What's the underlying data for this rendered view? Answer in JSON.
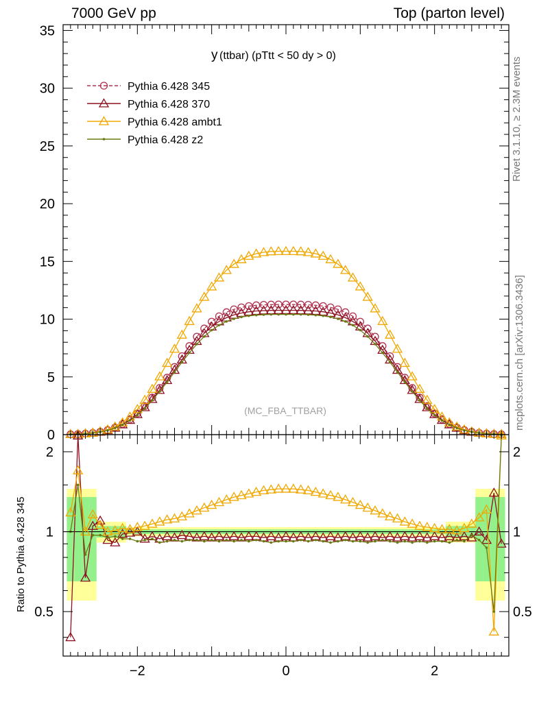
{
  "header": {
    "left": "7000 GeV pp",
    "right": "Top (parton level)"
  },
  "side_labels": {
    "rivet": "Rivet 3.1.10, ≥ 2.3M events",
    "mcplots": "mcplots.cern.ch [arXiv:1306.3436]"
  },
  "chart_data": [
    {
      "type": "line",
      "title_main": "y",
      "title_rest": "(ttbar) (pTtt < 50 dy > 0)",
      "watermark": "(MC_FBA_TTBAR)",
      "xlim": [
        -3.0,
        3.0
      ],
      "ylim": [
        0,
        35.5
      ],
      "yticks": [
        0,
        5,
        10,
        15,
        20,
        25,
        30,
        35
      ],
      "yticklabels": [
        "0",
        "5",
        "10",
        "15",
        "20",
        "25",
        "30",
        "35"
      ],
      "legend_position": "top-left",
      "series": [
        {
          "name": "Pythia 6.428 345",
          "color": "#b03050",
          "dashed": true,
          "marker": "circle",
          "x": [
            -2.9,
            -2.8,
            -2.7,
            -2.6,
            -2.5,
            -2.4,
            -2.3,
            -2.2,
            -2.1,
            -2.0,
            -1.9,
            -1.8,
            -1.7,
            -1.6,
            -1.5,
            -1.4,
            -1.3,
            -1.2,
            -1.1,
            -1.0,
            -0.9,
            -0.8,
            -0.7,
            -0.6,
            -0.5,
            -0.4,
            -0.3,
            -0.2,
            -0.1,
            0.0,
            0.1,
            0.2,
            0.3,
            0.4,
            0.5,
            0.6,
            0.7,
            0.8,
            0.9,
            1.0,
            1.1,
            1.2,
            1.3,
            1.4,
            1.5,
            1.6,
            1.7,
            1.8,
            1.9,
            2.0,
            2.1,
            2.2,
            2.3,
            2.4,
            2.5,
            2.6,
            2.7,
            2.8,
            2.9
          ],
          "y": [
            0.03,
            0.05,
            0.09,
            0.15,
            0.25,
            0.4,
            0.62,
            0.92,
            1.32,
            1.84,
            2.47,
            3.21,
            4.04,
            4.93,
            5.86,
            6.79,
            7.67,
            8.48,
            9.19,
            9.78,
            10.25,
            10.6,
            10.85,
            11.02,
            11.13,
            11.2,
            11.24,
            11.26,
            11.27,
            11.27,
            11.27,
            11.26,
            11.24,
            11.2,
            11.13,
            11.02,
            10.85,
            10.6,
            10.25,
            9.78,
            9.19,
            8.48,
            7.67,
            6.79,
            5.86,
            4.93,
            4.04,
            3.21,
            2.47,
            1.84,
            1.32,
            0.92,
            0.62,
            0.4,
            0.25,
            0.15,
            0.09,
            0.05,
            0.03
          ]
        },
        {
          "name": "Pythia 6.428 370",
          "color": "#8b1020",
          "dashed": false,
          "marker": "triangle",
          "x": [
            -2.9,
            -2.8,
            -2.7,
            -2.6,
            -2.5,
            -2.4,
            -2.3,
            -2.2,
            -2.1,
            -2.0,
            -1.9,
            -1.8,
            -1.7,
            -1.6,
            -1.5,
            -1.4,
            -1.3,
            -1.2,
            -1.1,
            -1.0,
            -0.9,
            -0.8,
            -0.7,
            -0.6,
            -0.5,
            -0.4,
            -0.3,
            -0.2,
            -0.1,
            0.0,
            0.1,
            0.2,
            0.3,
            0.4,
            0.5,
            0.6,
            0.7,
            0.8,
            0.9,
            1.0,
            1.1,
            1.2,
            1.3,
            1.4,
            1.5,
            1.6,
            1.7,
            1.8,
            1.9,
            2.0,
            2.1,
            2.2,
            2.3,
            2.4,
            2.5,
            2.6,
            2.7,
            2.8,
            2.9
          ],
          "y": [
            0.03,
            0.05,
            0.09,
            0.15,
            0.24,
            0.38,
            0.59,
            0.88,
            1.26,
            1.76,
            2.36,
            3.07,
            3.86,
            4.71,
            5.6,
            6.49,
            7.33,
            8.1,
            8.78,
            9.35,
            9.8,
            10.13,
            10.37,
            10.53,
            10.64,
            10.71,
            10.74,
            10.76,
            10.77,
            10.77,
            10.77,
            10.76,
            10.74,
            10.71,
            10.64,
            10.53,
            10.37,
            10.13,
            9.8,
            9.35,
            8.78,
            8.1,
            7.33,
            6.49,
            5.6,
            4.71,
            3.86,
            3.07,
            2.36,
            1.76,
            1.26,
            0.88,
            0.59,
            0.38,
            0.24,
            0.15,
            0.09,
            0.05,
            0.03
          ]
        },
        {
          "name": "Pythia 6.428 ambt1",
          "color": "#f0a800",
          "dashed": false,
          "marker": "triangle",
          "x": [
            -2.9,
            -2.8,
            -2.7,
            -2.6,
            -2.5,
            -2.4,
            -2.3,
            -2.2,
            -2.1,
            -2.0,
            -1.9,
            -1.8,
            -1.7,
            -1.6,
            -1.5,
            -1.4,
            -1.3,
            -1.2,
            -1.1,
            -1.0,
            -0.9,
            -0.8,
            -0.7,
            -0.6,
            -0.5,
            -0.4,
            -0.3,
            -0.2,
            -0.1,
            0.0,
            0.1,
            0.2,
            0.3,
            0.4,
            0.5,
            0.6,
            0.7,
            0.8,
            0.9,
            1.0,
            1.1,
            1.2,
            1.3,
            1.4,
            1.5,
            1.6,
            1.7,
            1.8,
            1.9,
            2.0,
            2.1,
            2.2,
            2.3,
            2.4,
            2.5,
            2.6,
            2.7,
            2.8,
            2.9
          ],
          "y": [
            0.03,
            0.05,
            0.09,
            0.16,
            0.27,
            0.44,
            0.69,
            1.04,
            1.55,
            2.2,
            3.0,
            3.95,
            5.03,
            6.2,
            7.42,
            8.64,
            9.82,
            10.92,
            11.92,
            12.82,
            13.59,
            14.24,
            14.77,
            15.17,
            15.47,
            15.67,
            15.79,
            15.86,
            15.88,
            15.88,
            15.88,
            15.86,
            15.79,
            15.67,
            15.47,
            15.17,
            14.77,
            14.24,
            13.59,
            12.82,
            11.92,
            10.92,
            9.82,
            8.64,
            7.42,
            6.2,
            5.03,
            3.95,
            3.0,
            2.2,
            1.55,
            1.04,
            0.69,
            0.44,
            0.27,
            0.16,
            0.09,
            0.05,
            0.03
          ]
        },
        {
          "name": "Pythia 6.428 z2",
          "color": "#6b7a10",
          "dashed": false,
          "marker": "dot",
          "x": [
            -2.9,
            -2.8,
            -2.7,
            -2.6,
            -2.5,
            -2.4,
            -2.3,
            -2.2,
            -2.1,
            -2.0,
            -1.9,
            -1.8,
            -1.7,
            -1.6,
            -1.5,
            -1.4,
            -1.3,
            -1.2,
            -1.1,
            -1.0,
            -0.9,
            -0.8,
            -0.7,
            -0.6,
            -0.5,
            -0.4,
            -0.3,
            -0.2,
            -0.1,
            0.0,
            0.1,
            0.2,
            0.3,
            0.4,
            0.5,
            0.6,
            0.7,
            0.8,
            0.9,
            1.0,
            1.1,
            1.2,
            1.3,
            1.4,
            1.5,
            1.6,
            1.7,
            1.8,
            1.9,
            2.0,
            2.1,
            2.2,
            2.3,
            2.4,
            2.5,
            2.6,
            2.7,
            2.8,
            2.9
          ],
          "y": [
            0.03,
            0.05,
            0.08,
            0.14,
            0.23,
            0.37,
            0.57,
            0.85,
            1.22,
            1.7,
            2.28,
            2.97,
            3.74,
            4.56,
            5.42,
            6.28,
            7.09,
            7.84,
            8.5,
            9.05,
            9.48,
            9.8,
            10.03,
            10.19,
            10.29,
            10.35,
            10.39,
            10.41,
            10.41,
            10.41,
            10.41,
            10.41,
            10.39,
            10.35,
            10.29,
            10.19,
            10.03,
            9.8,
            9.48,
            9.05,
            8.5,
            7.84,
            7.09,
            6.28,
            5.42,
            4.56,
            3.74,
            2.97,
            2.28,
            1.7,
            1.22,
            0.85,
            0.57,
            0.37,
            0.23,
            0.14,
            0.08,
            0.05,
            0.03
          ]
        }
      ]
    },
    {
      "type": "line",
      "ylabel": "Ratio to Pythia 6.428 345",
      "xlim": [
        -3.0,
        3.0
      ],
      "ylim": [
        0.34,
        2.32
      ],
      "log_y": true,
      "reference": 1.0,
      "xticks": [
        -2,
        0,
        2
      ],
      "xticklabels": [
        "−2",
        "0",
        "2"
      ],
      "yticks": [
        0.5,
        1,
        2
      ],
      "yticklabels": [
        "0.5",
        "1",
        "2"
      ],
      "series": [
        {
          "name": "Pythia 6.428 370",
          "color": "#8b1020",
          "marker": "triangle",
          "x": [
            -2.9,
            -2.8,
            -2.7,
            -2.6,
            -2.5,
            -2.4,
            -2.3,
            -2.2,
            -2.1,
            -2.0,
            -1.9,
            -1.8,
            -1.7,
            -1.6,
            -1.5,
            -1.4,
            -1.3,
            -1.2,
            -1.1,
            -1.0,
            -0.9,
            -0.8,
            -0.7,
            -0.6,
            -0.5,
            -0.4,
            -0.3,
            -0.2,
            -0.1,
            0.0,
            0.1,
            0.2,
            0.3,
            0.4,
            0.5,
            0.6,
            0.7,
            0.8,
            0.9,
            1.0,
            1.1,
            1.2,
            1.3,
            1.4,
            1.5,
            1.6,
            1.7,
            1.8,
            1.9,
            2.0,
            2.1,
            2.2,
            2.3,
            2.4,
            2.5,
            2.6,
            2.7,
            2.8,
            2.9
          ],
          "y": [
            0.4,
            2.3,
            0.67,
            1.05,
            1.1,
            0.93,
            0.91,
            0.98,
            0.99,
            1.0,
            0.94,
            0.96,
            0.94,
            0.96,
            0.95,
            0.97,
            0.96,
            0.95,
            0.96,
            0.95,
            0.96,
            0.95,
            0.96,
            0.95,
            0.96,
            0.96,
            0.95,
            0.96,
            0.95,
            0.96,
            0.95,
            0.96,
            0.95,
            0.96,
            0.95,
            0.96,
            0.95,
            0.96,
            0.95,
            0.96,
            0.95,
            0.96,
            0.95,
            0.96,
            0.95,
            0.96,
            0.95,
            0.96,
            0.95,
            0.96,
            0.95,
            0.96,
            0.95,
            0.96,
            0.95,
            1.0,
            0.93,
            1.4,
            0.9
          ]
        },
        {
          "name": "Pythia 6.428 ambt1",
          "color": "#f0a800",
          "marker": "triangle",
          "x": [
            -2.9,
            -2.8,
            -2.7,
            -2.6,
            -2.5,
            -2.4,
            -2.3,
            -2.2,
            -2.1,
            -2.0,
            -1.9,
            -1.8,
            -1.7,
            -1.6,
            -1.5,
            -1.4,
            -1.3,
            -1.2,
            -1.1,
            -1.0,
            -0.9,
            -0.8,
            -0.7,
            -0.6,
            -0.5,
            -0.4,
            -0.3,
            -0.2,
            -0.1,
            0.0,
            0.1,
            0.2,
            0.3,
            0.4,
            0.5,
            0.6,
            0.7,
            0.8,
            0.9,
            1.0,
            1.1,
            1.2,
            1.3,
            1.4,
            1.5,
            1.6,
            1.7,
            1.8,
            1.9,
            2.0,
            2.1,
            2.2,
            2.3,
            2.4,
            2.5,
            2.6,
            2.7,
            2.8,
            2.9
          ],
          "y": [
            1.18,
            1.7,
            1.0,
            1.16,
            1.06,
            1.0,
            1.01,
            1.03,
            1.02,
            1.04,
            1.05,
            1.07,
            1.09,
            1.11,
            1.12,
            1.14,
            1.17,
            1.2,
            1.23,
            1.26,
            1.29,
            1.32,
            1.35,
            1.37,
            1.39,
            1.41,
            1.43,
            1.44,
            1.45,
            1.45,
            1.45,
            1.44,
            1.43,
            1.41,
            1.39,
            1.37,
            1.35,
            1.32,
            1.29,
            1.26,
            1.23,
            1.2,
            1.17,
            1.14,
            1.12,
            1.09,
            1.07,
            1.05,
            1.04,
            1.03,
            1.02,
            1.02,
            1.01,
            1.03,
            1.07,
            1.13,
            1.21,
            0.42,
            2.3
          ]
        },
        {
          "name": "Pythia 6.428 z2",
          "color": "#6b7a10",
          "marker": "dot",
          "x": [
            -2.9,
            -2.8,
            -2.7,
            -2.6,
            -2.5,
            -2.4,
            -2.3,
            -2.2,
            -2.1,
            -2.0,
            -1.9,
            -1.8,
            -1.7,
            -1.6,
            -1.5,
            -1.4,
            -1.3,
            -1.2,
            -1.1,
            -1.0,
            -0.9,
            -0.8,
            -0.7,
            -0.6,
            -0.5,
            -0.4,
            -0.3,
            -0.2,
            -0.1,
            0.0,
            0.1,
            0.2,
            0.3,
            0.4,
            0.5,
            0.6,
            0.7,
            0.8,
            0.9,
            1.0,
            1.1,
            1.2,
            1.3,
            1.4,
            1.5,
            1.6,
            1.7,
            1.8,
            1.9,
            2.0,
            2.1,
            2.2,
            2.3,
            2.4,
            2.5,
            2.6,
            2.7,
            2.8,
            2.9
          ],
          "y": [
            1.0,
            1.5,
            0.82,
            0.97,
            0.97,
            0.95,
            0.96,
            0.94,
            0.94,
            0.92,
            0.93,
            0.94,
            0.91,
            0.92,
            0.93,
            0.92,
            0.93,
            0.93,
            0.92,
            0.93,
            0.92,
            0.93,
            0.92,
            0.93,
            0.92,
            0.93,
            0.92,
            0.91,
            0.92,
            0.92,
            0.92,
            0.93,
            0.92,
            0.93,
            0.92,
            0.91,
            0.92,
            0.93,
            0.92,
            0.92,
            0.91,
            0.92,
            0.93,
            0.92,
            0.91,
            0.92,
            0.91,
            0.92,
            0.91,
            0.92,
            0.92,
            0.91,
            0.93,
            0.92,
            0.97,
            0.93,
            0.87,
            0.5,
            2.3
          ]
        }
      ]
    }
  ]
}
